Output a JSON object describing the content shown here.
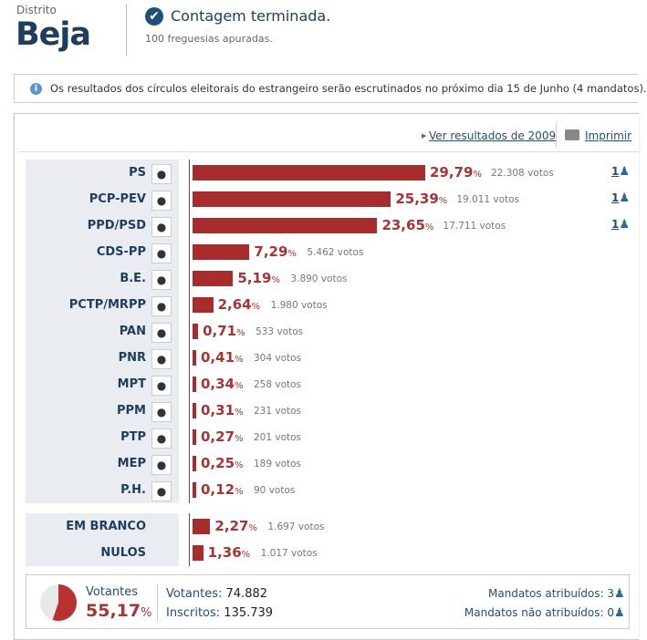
{
  "header": {
    "district_label": "Distrito",
    "district_name": "Beja",
    "status": "Contagem terminada.",
    "substatus": "100 freguesias apuradas."
  },
  "info": {
    "icon": "info-icon",
    "text": "Os resultados dos círculos eleitorais do estrangeiro serão escrutinados no próximo dia 15 de Junho (4 mandatos)."
  },
  "toolbar": {
    "previous_results": "Ver resultados de 2009",
    "print": "Imprimir"
  },
  "colors": {
    "bar": "#a82c2c",
    "accent": "#1f3d5c"
  },
  "parties": [
    {
      "name": "PS",
      "pct": "29,79",
      "value": 29.79,
      "votes": "22.308 votos",
      "seats": "1",
      "logo": "ps-logo"
    },
    {
      "name": "PCP-PEV",
      "pct": "25,39",
      "value": 25.39,
      "votes": "19.011 votos",
      "seats": "1",
      "logo": "pcp-pev-logo"
    },
    {
      "name": "PPD/PSD",
      "pct": "23,65",
      "value": 23.65,
      "votes": "17.711 votos",
      "seats": "1",
      "logo": "psd-logo"
    },
    {
      "name": "CDS-PP",
      "pct": "7,29",
      "value": 7.29,
      "votes": "5.462 votos",
      "logo": "cds-logo"
    },
    {
      "name": "B.E.",
      "pct": "5,19",
      "value": 5.19,
      "votes": "3.890 votos",
      "logo": "be-logo"
    },
    {
      "name": "PCTP/MRPP",
      "pct": "2,64",
      "value": 2.64,
      "votes": "1.980 votos",
      "logo": "mrpp-logo"
    },
    {
      "name": "PAN",
      "pct": "0,71",
      "value": 0.71,
      "votes": "533 votos",
      "logo": "pan-logo"
    },
    {
      "name": "PNR",
      "pct": "0,41",
      "value": 0.41,
      "votes": "304 votos",
      "logo": "pnr-logo"
    },
    {
      "name": "MPT",
      "pct": "0,34",
      "value": 0.34,
      "votes": "258 votos",
      "logo": "mpt-logo"
    },
    {
      "name": "PPM",
      "pct": "0,31",
      "value": 0.31,
      "votes": "231 votos",
      "logo": "ppm-logo"
    },
    {
      "name": "PTP",
      "pct": "0,27",
      "value": 0.27,
      "votes": "201 votos",
      "logo": "ptp-logo"
    },
    {
      "name": "MEP",
      "pct": "0,25",
      "value": 0.25,
      "votes": "189 votos",
      "logo": "mep-logo"
    },
    {
      "name": "P.H.",
      "pct": "0,12",
      "value": 0.12,
      "votes": "90 votos",
      "logo": "ph-logo"
    }
  ],
  "other": [
    {
      "name": "EM BRANCO",
      "pct": "2,27",
      "value": 2.27,
      "votes": "1.697 votos"
    },
    {
      "name": "NULOS",
      "pct": "1,36",
      "value": 1.36,
      "votes": "1.017 votos"
    }
  ],
  "summary": {
    "turnout_label": "Votantes",
    "turnout_pct": "55,17",
    "turnout_value": 55.17,
    "pct_sign": "%",
    "voters_label": "Votantes:",
    "voters": "74.882",
    "registered_label": "Inscritos:",
    "registered": "135.739",
    "seats_assigned_label": "Mandatos atribuídos:",
    "seats_assigned": "3",
    "seats_unassigned_label": "Mandatos não atribuídos:",
    "seats_unassigned": "0"
  }
}
